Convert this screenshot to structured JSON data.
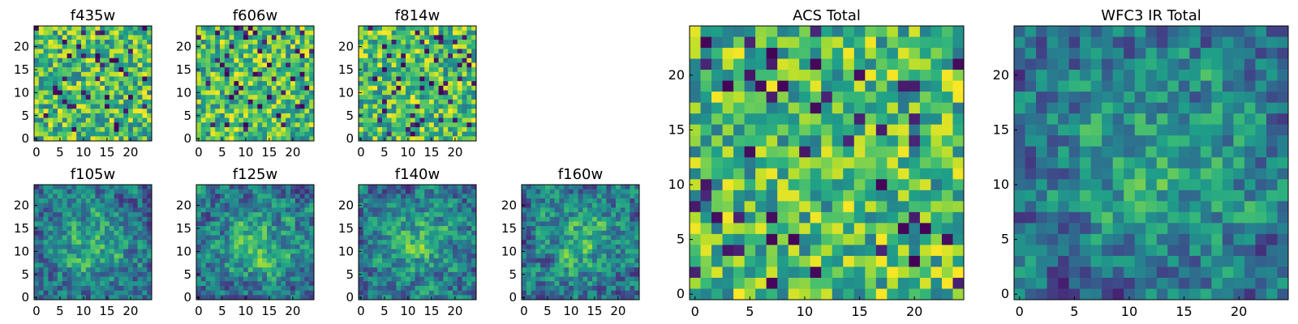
{
  "chart_data": [
    {
      "type": "heatmap",
      "title": "f435w",
      "grid": "25x25",
      "xticks": [
        "0",
        "5",
        "10",
        "15",
        "20"
      ],
      "yticks": [
        "0",
        "5",
        "10",
        "15",
        "20"
      ],
      "xlim": [
        0,
        25
      ],
      "ylim": [
        0,
        25
      ],
      "colormap": "viridis",
      "texture": "noise",
      "seed": 11
    },
    {
      "type": "heatmap",
      "title": "f606w",
      "grid": "25x25",
      "xticks": [
        "0",
        "5",
        "10",
        "15",
        "20"
      ],
      "yticks": [
        "0",
        "5",
        "10",
        "15",
        "20"
      ],
      "xlim": [
        0,
        25
      ],
      "ylim": [
        0,
        25
      ],
      "colormap": "viridis",
      "texture": "noise",
      "seed": 23
    },
    {
      "type": "heatmap",
      "title": "f814w",
      "grid": "25x25",
      "xticks": [
        "0",
        "5",
        "10",
        "15",
        "20"
      ],
      "yticks": [
        "0",
        "5",
        "10",
        "15",
        "20"
      ],
      "xlim": [
        0,
        25
      ],
      "ylim": [
        0,
        25
      ],
      "colormap": "viridis",
      "texture": "noise",
      "seed": 37
    },
    {
      "type": "heatmap",
      "title": "f105w",
      "grid": "25x25",
      "xticks": [
        "0",
        "5",
        "10",
        "15",
        "20"
      ],
      "yticks": [
        "0",
        "5",
        "10",
        "15",
        "20"
      ],
      "xlim": [
        0,
        25
      ],
      "ylim": [
        0,
        25
      ],
      "colormap": "viridis",
      "texture": "smooth",
      "seed": 41
    },
    {
      "type": "heatmap",
      "title": "f125w",
      "grid": "25x25",
      "xticks": [
        "0",
        "5",
        "10",
        "15",
        "20"
      ],
      "yticks": [
        "0",
        "5",
        "10",
        "15",
        "20"
      ],
      "xlim": [
        0,
        25
      ],
      "ylim": [
        0,
        25
      ],
      "colormap": "viridis",
      "texture": "smooth",
      "seed": 53
    },
    {
      "type": "heatmap",
      "title": "f140w",
      "grid": "25x25",
      "xticks": [
        "0",
        "5",
        "10",
        "15",
        "20"
      ],
      "yticks": [
        "0",
        "5",
        "10",
        "15",
        "20"
      ],
      "xlim": [
        0,
        25
      ],
      "ylim": [
        0,
        25
      ],
      "colormap": "viridis",
      "texture": "smooth",
      "seed": 67
    },
    {
      "type": "heatmap",
      "title": "f160w",
      "grid": "25x25",
      "xticks": [
        "0",
        "5",
        "10",
        "15",
        "20"
      ],
      "yticks": [
        "0",
        "5",
        "10",
        "15",
        "20"
      ],
      "xlim": [
        0,
        25
      ],
      "ylim": [
        0,
        25
      ],
      "colormap": "viridis",
      "texture": "smooth",
      "seed": 79
    },
    {
      "type": "heatmap",
      "title": "ACS Total",
      "grid": "25x25",
      "xticks": [
        "0",
        "5",
        "10",
        "15",
        "20"
      ],
      "yticks": [
        "0",
        "5",
        "10",
        "15",
        "20"
      ],
      "xlim": [
        0,
        25
      ],
      "ylim": [
        0,
        25
      ],
      "colormap": "viridis",
      "texture": "noise",
      "seed": 97
    },
    {
      "type": "heatmap",
      "title": "WFC3 IR Total",
      "grid": "25x25",
      "xticks": [
        "0",
        "5",
        "10",
        "15",
        "20"
      ],
      "yticks": [
        "0",
        "5",
        "10",
        "15",
        "20"
      ],
      "xlim": [
        0,
        25
      ],
      "ylim": [
        0,
        25
      ],
      "colormap": "viridis",
      "texture": "smooth",
      "seed": 131
    }
  ]
}
